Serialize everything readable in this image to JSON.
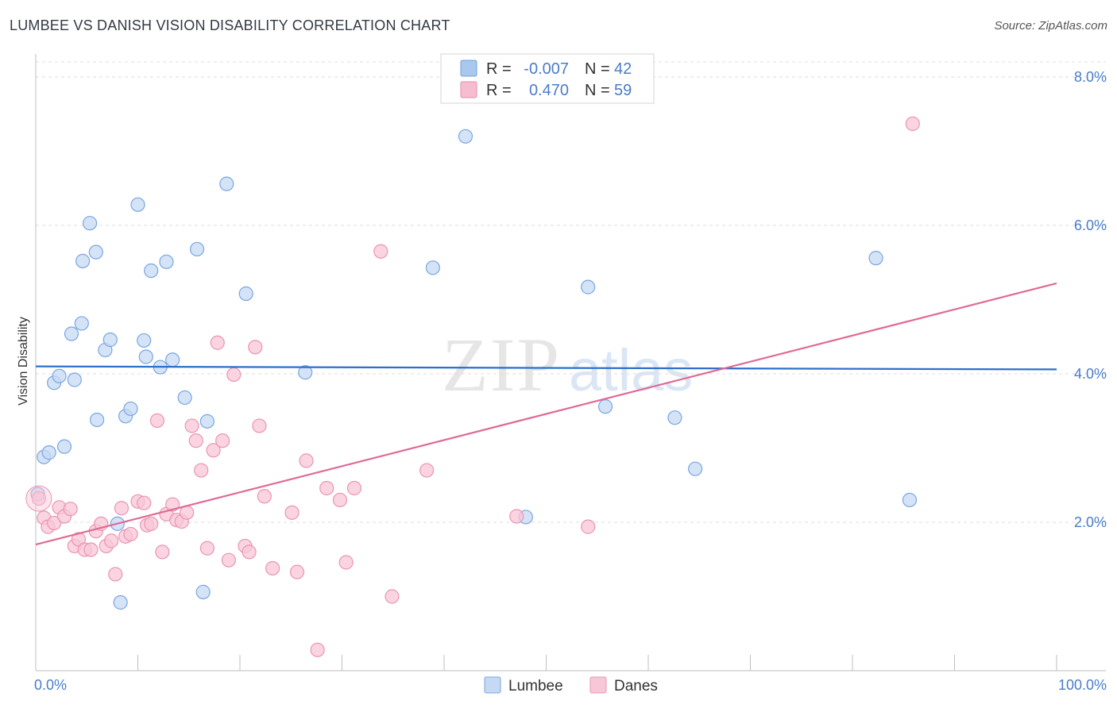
{
  "header": {
    "title": "LUMBEE VS DANISH VISION DISABILITY CORRELATION CHART",
    "source": "Source: ZipAtlas.com"
  },
  "chart_data": {
    "type": "scatter",
    "ylabel": "Vision Disability",
    "xlim": [
      0,
      100
    ],
    "ylim": [
      0,
      8.0
    ],
    "y_ticks": [
      {
        "value": 2.0,
        "label": "2.0%"
      },
      {
        "value": 4.0,
        "label": "4.0%"
      },
      {
        "value": 6.0,
        "label": "6.0%"
      },
      {
        "value": 8.0,
        "label": "8.0%"
      }
    ],
    "x_tick_labels": {
      "left": "0.0%",
      "right": "100.0%"
    },
    "legend": {
      "entries": [
        {
          "r_label": "R =",
          "r_value": "-0.007",
          "n_label": "N =",
          "n_value": "42",
          "color": "#a9c8f0",
          "stroke": "#6f9fe0"
        },
        {
          "r_label": "R =",
          "r_value": "0.470",
          "n_label": "N =",
          "n_value": "59",
          "color": "#f6bcd0",
          "stroke": "#e88aab"
        }
      ]
    },
    "series": [
      {
        "name": "Lumbee",
        "fill": "#c5d9f3",
        "stroke": "#7aa6e2",
        "line_color": "#2e6fcb",
        "trend": {
          "x0": 0,
          "y0": 4.1,
          "x1": 100,
          "y1": 4.06
        },
        "points": [
          [
            0.2,
            2.38
          ],
          [
            0.8,
            2.88
          ],
          [
            1.3,
            2.94
          ],
          [
            1.8,
            3.88
          ],
          [
            2.3,
            3.97
          ],
          [
            2.8,
            3.02
          ],
          [
            3.5,
            4.54
          ],
          [
            3.8,
            3.92
          ],
          [
            4.5,
            4.68
          ],
          [
            4.6,
            5.52
          ],
          [
            5.3,
            6.03
          ],
          [
            5.9,
            5.64
          ],
          [
            6.0,
            3.38
          ],
          [
            6.8,
            4.32
          ],
          [
            7.3,
            4.46
          ],
          [
            8.0,
            1.98
          ],
          [
            8.3,
            0.92
          ],
          [
            8.8,
            3.43
          ],
          [
            9.3,
            3.53
          ],
          [
            10.0,
            6.28
          ],
          [
            10.6,
            4.45
          ],
          [
            10.8,
            4.23
          ],
          [
            11.3,
            5.39
          ],
          [
            12.2,
            4.09
          ],
          [
            12.8,
            5.51
          ],
          [
            13.4,
            4.19
          ],
          [
            14.6,
            3.68
          ],
          [
            15.8,
            5.68
          ],
          [
            16.4,
            1.06
          ],
          [
            16.8,
            3.36
          ],
          [
            18.7,
            6.56
          ],
          [
            20.6,
            5.08
          ],
          [
            26.4,
            4.02
          ],
          [
            38.9,
            5.43
          ],
          [
            42.1,
            7.2
          ],
          [
            48.0,
            2.07
          ],
          [
            54.1,
            5.17
          ],
          [
            55.8,
            3.56
          ],
          [
            62.6,
            3.41
          ],
          [
            64.6,
            2.72
          ],
          [
            82.3,
            5.56
          ],
          [
            85.6,
            2.3
          ]
        ]
      },
      {
        "name": "Danes",
        "fill": "#f8c7d7",
        "stroke": "#ea94b2",
        "line_color": "#e06a95",
        "trend": {
          "x0": 0,
          "y0": 1.7,
          "x1": 100,
          "y1": 5.22
        },
        "points": [
          [
            0.3,
            2.32
          ],
          [
            0.8,
            2.06
          ],
          [
            1.2,
            1.94
          ],
          [
            1.8,
            1.99
          ],
          [
            2.3,
            2.2
          ],
          [
            2.8,
            2.08
          ],
          [
            3.4,
            2.18
          ],
          [
            3.8,
            1.68
          ],
          [
            4.2,
            1.77
          ],
          [
            4.8,
            1.63
          ],
          [
            5.4,
            1.63
          ],
          [
            5.9,
            1.88
          ],
          [
            6.4,
            1.98
          ],
          [
            6.9,
            1.68
          ],
          [
            7.4,
            1.75
          ],
          [
            7.8,
            1.3
          ],
          [
            8.4,
            2.19
          ],
          [
            8.8,
            1.81
          ],
          [
            9.3,
            1.84
          ],
          [
            10.0,
            2.28
          ],
          [
            10.6,
            2.26
          ],
          [
            10.9,
            1.96
          ],
          [
            11.3,
            1.98
          ],
          [
            11.9,
            3.37
          ],
          [
            12.4,
            1.6
          ],
          [
            12.8,
            2.11
          ],
          [
            13.4,
            2.24
          ],
          [
            13.8,
            2.03
          ],
          [
            14.3,
            2.01
          ],
          [
            14.8,
            2.13
          ],
          [
            15.3,
            3.3
          ],
          [
            15.7,
            3.1
          ],
          [
            16.2,
            2.7
          ],
          [
            16.8,
            1.65
          ],
          [
            17.4,
            2.97
          ],
          [
            17.8,
            4.42
          ],
          [
            18.3,
            3.1
          ],
          [
            18.9,
            1.49
          ],
          [
            19.4,
            3.99
          ],
          [
            20.5,
            1.68
          ],
          [
            20.9,
            1.6
          ],
          [
            21.5,
            4.36
          ],
          [
            21.9,
            3.3
          ],
          [
            22.4,
            2.35
          ],
          [
            23.2,
            1.38
          ],
          [
            25.1,
            2.13
          ],
          [
            25.6,
            1.33
          ],
          [
            26.5,
            2.83
          ],
          [
            27.6,
            0.28
          ],
          [
            28.5,
            2.46
          ],
          [
            29.8,
            2.3
          ],
          [
            30.4,
            1.46
          ],
          [
            31.2,
            2.46
          ],
          [
            33.8,
            5.65
          ],
          [
            34.9,
            1.0
          ],
          [
            38.3,
            2.7
          ],
          [
            47.1,
            2.08
          ],
          [
            54.1,
            1.94
          ],
          [
            85.9,
            7.37
          ]
        ]
      }
    ]
  }
}
